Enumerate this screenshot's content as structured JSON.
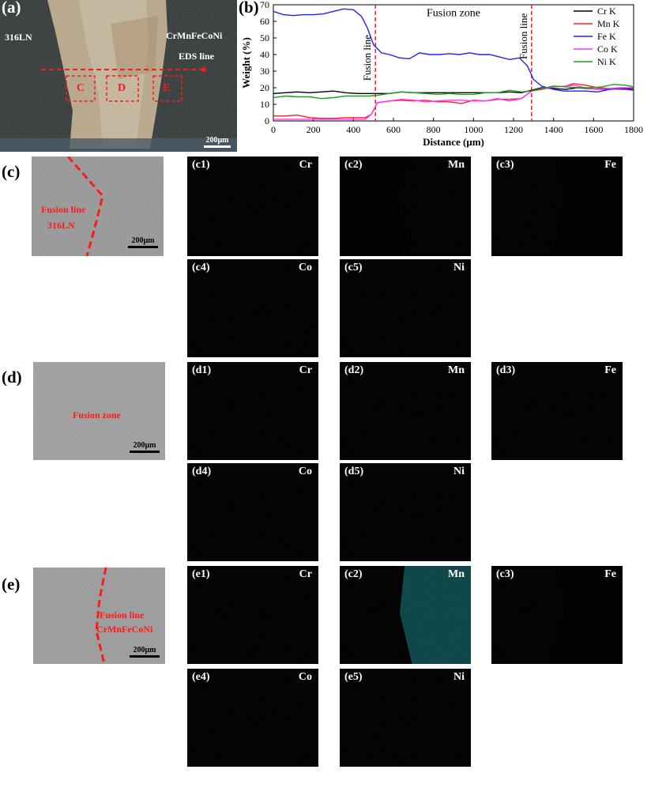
{
  "panel_labels": {
    "a": "(a)",
    "b": "(b)",
    "c": "(c)",
    "d": "(d)",
    "e": "(e)"
  },
  "panel_a": {
    "left_material": "316LN",
    "right_material": "CrMnFeCoNi",
    "line_label": "EDS line",
    "box_labels": [
      "C",
      "D",
      "E"
    ],
    "scale": "200μm"
  },
  "chart_data": {
    "type": "line",
    "xlabel": "Distance (μm)",
    "ylabel": "Weight (%)",
    "xlim": [
      0,
      1800
    ],
    "ylim": [
      0,
      70
    ],
    "xticks": [
      "0",
      "200",
      "400",
      "600",
      "800",
      "1000",
      "1200",
      "1400",
      "1600",
      "1800"
    ],
    "yticks": [
      "0",
      "10",
      "20",
      "30",
      "40",
      "50",
      "60",
      "70"
    ],
    "legend_position": "top-right",
    "annotations": [
      {
        "text": "Fusion zone",
        "x": 900,
        "y": 63
      },
      {
        "text": "Fusion line",
        "x": 510,
        "y": 38
      },
      {
        "text": "Fusion line",
        "x": 1290,
        "y": 51
      }
    ],
    "vlines": [
      510,
      1290
    ],
    "series": [
      {
        "name": "Cr K",
        "color": "#000000",
        "x": [
          0,
          60,
          120,
          180,
          240,
          300,
          360,
          420,
          480,
          520,
          580,
          640,
          700,
          760,
          820,
          880,
          940,
          1000,
          1060,
          1120,
          1180,
          1240,
          1290,
          1340,
          1400,
          1460,
          1520,
          1580,
          1640,
          1700,
          1760,
          1800
        ],
        "y": [
          16.5,
          17,
          17.5,
          17,
          17.5,
          18,
          17,
          16.5,
          16.5,
          16.5,
          16.5,
          17.5,
          17,
          17,
          17,
          17,
          17,
          17,
          17,
          17,
          17.5,
          17,
          18.5,
          20,
          19.5,
          19,
          20,
          19.5,
          19,
          19.5,
          19.5,
          19.5
        ]
      },
      {
        "name": "Mn K",
        "color": "#ff2020",
        "x": [
          0,
          60,
          120,
          180,
          240,
          300,
          360,
          420,
          460,
          490,
          520,
          580,
          640,
          700,
          760,
          820,
          880,
          940,
          1000,
          1060,
          1120,
          1180,
          1240,
          1290,
          1340,
          1400,
          1460,
          1500,
          1560,
          1620,
          1680,
          1740,
          1800
        ],
        "y": [
          3,
          3,
          3.5,
          2,
          1.5,
          1.5,
          2,
          2,
          2,
          4,
          11,
          12,
          12.5,
          12,
          12.5,
          11.5,
          11.5,
          10.5,
          12.5,
          12,
          13,
          13,
          13.5,
          18,
          19,
          20.5,
          21,
          22.5,
          21.5,
          20,
          19.5,
          19,
          19
        ]
      },
      {
        "name": "Fe K",
        "color": "#2020ff",
        "x": [
          0,
          50,
          100,
          150,
          200,
          250,
          300,
          350,
          400,
          440,
          470,
          500,
          540,
          580,
          630,
          680,
          730,
          780,
          830,
          880,
          930,
          980,
          1030,
          1080,
          1130,
          1180,
          1230,
          1270,
          1300,
          1340,
          1400,
          1450,
          1500,
          1560,
          1620,
          1680,
          1740,
          1800
        ],
        "y": [
          66,
          64,
          63.5,
          64,
          64,
          64.5,
          66,
          67.5,
          67,
          63,
          56,
          46,
          41,
          40,
          38,
          37.5,
          41,
          40,
          40,
          40.5,
          40,
          41,
          40,
          40,
          38.5,
          37,
          38,
          33,
          25,
          21,
          19,
          18,
          18,
          18,
          17.5,
          19,
          19.5,
          18.5
        ]
      },
      {
        "name": "Co K",
        "color": "#ff30ff",
        "x": [
          0,
          60,
          120,
          180,
          240,
          300,
          360,
          420,
          460,
          490,
          520,
          580,
          640,
          700,
          760,
          820,
          880,
          940,
          1000,
          1060,
          1120,
          1180,
          1240,
          1290,
          1340,
          1400,
          1460,
          1500,
          1560,
          1620,
          1680,
          1740,
          1800
        ],
        "y": [
          1,
          1,
          1,
          1,
          1,
          1,
          1,
          1,
          1,
          4,
          11,
          12,
          13,
          12.5,
          11.5,
          12,
          12.5,
          12.5,
          12,
          12,
          13.5,
          12,
          13.5,
          18,
          19.5,
          20.5,
          21,
          21.5,
          20,
          19,
          19.5,
          20,
          20
        ]
      },
      {
        "name": "Ni K",
        "color": "#1aa01a",
        "x": [
          0,
          60,
          120,
          180,
          240,
          300,
          360,
          420,
          480,
          520,
          580,
          640,
          700,
          760,
          820,
          880,
          940,
          1000,
          1060,
          1120,
          1180,
          1240,
          1290,
          1340,
          1400,
          1460,
          1520,
          1580,
          1640,
          1700,
          1760,
          1800
        ],
        "y": [
          14,
          15,
          14.5,
          14.5,
          13.5,
          14,
          15,
          15,
          15,
          15.5,
          16.5,
          17.5,
          17,
          16.5,
          16,
          16.5,
          16,
          16,
          17,
          17,
          18.5,
          17.5,
          18,
          19.5,
          21,
          20.5,
          20,
          20,
          20.5,
          22,
          21.5,
          20.5
        ]
      }
    ]
  },
  "panel_c": {
    "micro": {
      "label1": "Fusion line",
      "label2": "316LN",
      "scale": "200μm"
    },
    "maps": [
      {
        "tag": "(c1)",
        "element": "Cr"
      },
      {
        "tag": "(c2)",
        "element": "Mn"
      },
      {
        "tag": "(c3)",
        "element": "Fe"
      },
      {
        "tag": "(c4)",
        "element": "Co"
      },
      {
        "tag": "(c5)",
        "element": "Ni"
      }
    ]
  },
  "panel_d": {
    "micro": {
      "label1": "Fusion zone",
      "scale": "200μm"
    },
    "maps": [
      {
        "tag": "(d1)",
        "element": "Cr"
      },
      {
        "tag": "(d2)",
        "element": "Mn"
      },
      {
        "tag": "(d3)",
        "element": "Fe"
      },
      {
        "tag": "(d4)",
        "element": "Co"
      },
      {
        "tag": "(d5)",
        "element": "Ni"
      }
    ]
  },
  "panel_e": {
    "micro": {
      "label1": "Fusion line",
      "label2": "CrMnFeCoNi",
      "scale": "200μm"
    },
    "maps": [
      {
        "tag": "(e1)",
        "element": "Cr"
      },
      {
        "tag": "(c2)",
        "element": "Mn"
      },
      {
        "tag": "(c3)",
        "element": "Fe"
      },
      {
        "tag": "(e4)",
        "element": "Co"
      },
      {
        "tag": "(e5)",
        "element": "Ni"
      }
    ]
  },
  "colors": {
    "Cr": "#c01818",
    "Mn": "#28c8d0",
    "Fe": "#d8d020",
    "Co": "#2020c0",
    "Ni": "#20b020",
    "fusion_line": "#ff1a1a"
  }
}
